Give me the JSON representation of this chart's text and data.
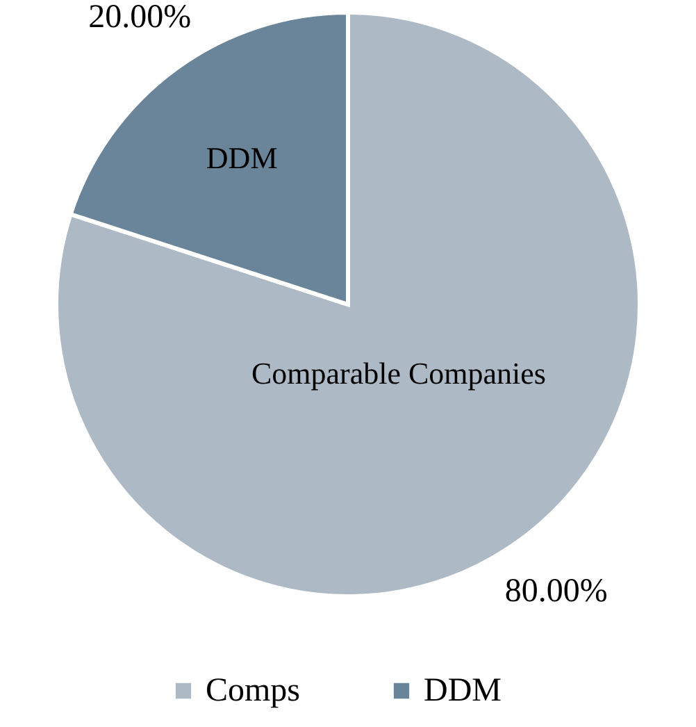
{
  "chart_data": {
    "type": "pie",
    "categories": [
      "Comps",
      "DDM"
    ],
    "values": [
      80,
      20
    ],
    "colors": [
      "#adb9c5",
      "#6a8499"
    ],
    "value_labels": [
      "80.00%",
      "20.00%"
    ],
    "annotations": [
      "Comparable Companies",
      "DDM"
    ],
    "legend": "bottom"
  }
}
